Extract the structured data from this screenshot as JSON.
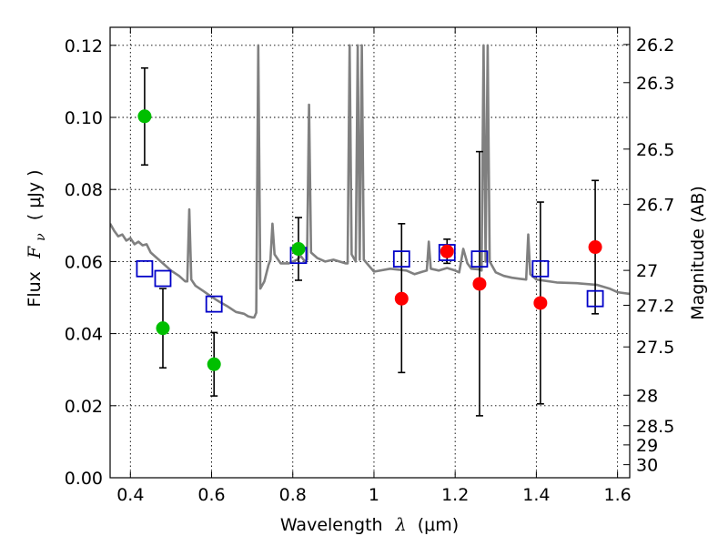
{
  "chart_data": {
    "type": "scatter",
    "xlabel": "Wavelength",
    "xlabel_symbol": "λ",
    "xlabel_unit": "(μm)",
    "ylabel": "Flux",
    "ylabel_symbol": "F",
    "ylabel_subscript": "ν",
    "ylabel_unit": "( μJy )",
    "y2label": "Magnitude (AB)",
    "xlim": [
      0.35,
      1.63
    ],
    "ylim": [
      0.0,
      0.125
    ],
    "grid": true,
    "x_ticks": [
      0.4,
      0.6,
      0.8,
      1.0,
      1.2,
      1.4,
      1.6
    ],
    "x_tick_labels": [
      "0.4",
      "0.6",
      "0.8",
      "1",
      "1.2",
      "1.4",
      "1.6"
    ],
    "y_ticks": [
      0.0,
      0.02,
      0.04,
      0.06,
      0.08,
      0.1,
      0.12
    ],
    "y_tick_labels": [
      "0.00",
      "0.02",
      "0.04",
      "0.06",
      "0.08",
      "0.10",
      "0.12"
    ],
    "mag_ticks": [
      "26.2",
      "26.3",
      "26.5",
      "26.7",
      "27",
      "27.2",
      "27.5",
      "28",
      "28.5",
      "29",
      "30"
    ],
    "colors": {
      "green": "#00bf00",
      "red": "#ff0000",
      "blue": "#0000c8",
      "model": "#808080",
      "errorbar": "#000000"
    },
    "series": [
      {
        "name": "green detections",
        "marker": "circle",
        "points": [
          {
            "x": 0.435,
            "y": 0.1003,
            "ylo": 0.0868,
            "yhi": 0.1137
          },
          {
            "x": 0.48,
            "y": 0.0415,
            "ylo": 0.0305,
            "yhi": 0.0525
          },
          {
            "x": 0.606,
            "y": 0.0315,
            "ylo": 0.0227,
            "yhi": 0.0403
          },
          {
            "x": 0.814,
            "y": 0.0635,
            "ylo": 0.0548,
            "yhi": 0.0722
          }
        ]
      },
      {
        "name": "red detections",
        "marker": "circle",
        "points": [
          {
            "x": 1.068,
            "y": 0.0497,
            "ylo": 0.0292,
            "yhi": 0.0705
          },
          {
            "x": 1.18,
            "y": 0.0628,
            "ylo": 0.0595,
            "yhi": 0.0662
          },
          {
            "x": 1.26,
            "y": 0.0538,
            "ylo": 0.0172,
            "yhi": 0.0905
          },
          {
            "x": 1.41,
            "y": 0.0485,
            "ylo": 0.0205,
            "yhi": 0.0765
          },
          {
            "x": 1.545,
            "y": 0.064,
            "ylo": 0.0455,
            "yhi": 0.0825
          }
        ]
      },
      {
        "name": "model photometry",
        "marker": "open-square",
        "points": [
          {
            "x": 0.435,
            "y": 0.058
          },
          {
            "x": 0.48,
            "y": 0.0553
          },
          {
            "x": 0.606,
            "y": 0.0482
          },
          {
            "x": 0.814,
            "y": 0.0617
          },
          {
            "x": 1.068,
            "y": 0.0607
          },
          {
            "x": 1.18,
            "y": 0.0625
          },
          {
            "x": 1.26,
            "y": 0.0607
          },
          {
            "x": 1.41,
            "y": 0.058
          },
          {
            "x": 1.545,
            "y": 0.0497
          }
        ]
      }
    ],
    "model_spectrum": {
      "name": "model spectrum",
      "points": [
        [
          0.35,
          0.0705
        ],
        [
          0.36,
          0.0685
        ],
        [
          0.37,
          0.067
        ],
        [
          0.38,
          0.0675
        ],
        [
          0.39,
          0.0658
        ],
        [
          0.4,
          0.0665
        ],
        [
          0.41,
          0.0648
        ],
        [
          0.42,
          0.0655
        ],
        [
          0.43,
          0.0645
        ],
        [
          0.44,
          0.0648
        ],
        [
          0.45,
          0.0625
        ],
        [
          0.46,
          0.0615
        ],
        [
          0.47,
          0.0605
        ],
        [
          0.48,
          0.0595
        ],
        [
          0.5,
          0.0575
        ],
        [
          0.52,
          0.056
        ],
        [
          0.535,
          0.0545
        ],
        [
          0.54,
          0.0545
        ],
        [
          0.545,
          0.0745
        ],
        [
          0.55,
          0.055
        ],
        [
          0.56,
          0.0533
        ],
        [
          0.58,
          0.0518
        ],
        [
          0.6,
          0.0502
        ],
        [
          0.62,
          0.0488
        ],
        [
          0.64,
          0.0475
        ],
        [
          0.66,
          0.046
        ],
        [
          0.68,
          0.0455
        ],
        [
          0.69,
          0.0448
        ],
        [
          0.7,
          0.0445
        ],
        [
          0.705,
          0.0445
        ],
        [
          0.71,
          0.0458
        ],
        [
          0.715,
          0.12
        ],
        [
          0.72,
          0.0525
        ],
        [
          0.73,
          0.0545
        ],
        [
          0.74,
          0.059
        ],
        [
          0.745,
          0.0605
        ],
        [
          0.75,
          0.0705
        ],
        [
          0.755,
          0.062
        ],
        [
          0.77,
          0.0595
        ],
        [
          0.79,
          0.0595
        ],
        [
          0.81,
          0.0605
        ],
        [
          0.82,
          0.0615
        ],
        [
          0.83,
          0.06
        ],
        [
          0.835,
          0.0605
        ],
        [
          0.84,
          0.1035
        ],
        [
          0.845,
          0.0625
        ],
        [
          0.86,
          0.061
        ],
        [
          0.88,
          0.06
        ],
        [
          0.9,
          0.0605
        ],
        [
          0.93,
          0.0595
        ],
        [
          0.935,
          0.0595
        ],
        [
          0.94,
          0.12
        ],
        [
          0.945,
          0.062
        ],
        [
          0.955,
          0.06
        ],
        [
          0.96,
          0.12
        ],
        [
          0.965,
          0.0605
        ],
        [
          0.97,
          0.12
        ],
        [
          0.975,
          0.0605
        ],
        [
          0.99,
          0.0585
        ],
        [
          1.0,
          0.0572
        ],
        [
          1.04,
          0.058
        ],
        [
          1.08,
          0.0575
        ],
        [
          1.1,
          0.0565
        ],
        [
          1.12,
          0.0572
        ],
        [
          1.13,
          0.0575
        ],
        [
          1.135,
          0.0655
        ],
        [
          1.14,
          0.058
        ],
        [
          1.16,
          0.0575
        ],
        [
          1.18,
          0.0582
        ],
        [
          1.2,
          0.0575
        ],
        [
          1.21,
          0.057
        ],
        [
          1.22,
          0.0635
        ],
        [
          1.23,
          0.0595
        ],
        [
          1.24,
          0.058
        ],
        [
          1.26,
          0.0578
        ],
        [
          1.265,
          0.0575
        ],
        [
          1.27,
          0.12
        ],
        [
          1.275,
          0.06
        ],
        [
          1.28,
          0.12
        ],
        [
          1.285,
          0.06
        ],
        [
          1.3,
          0.057
        ],
        [
          1.32,
          0.056
        ],
        [
          1.34,
          0.0555
        ],
        [
          1.36,
          0.0552
        ],
        [
          1.375,
          0.055
        ],
        [
          1.38,
          0.0675
        ],
        [
          1.385,
          0.0565
        ],
        [
          1.4,
          0.055
        ],
        [
          1.45,
          0.0542
        ],
        [
          1.5,
          0.054
        ],
        [
          1.55,
          0.0535
        ],
        [
          1.58,
          0.0525
        ],
        [
          1.6,
          0.0515
        ],
        [
          1.63,
          0.051
        ]
      ]
    }
  }
}
